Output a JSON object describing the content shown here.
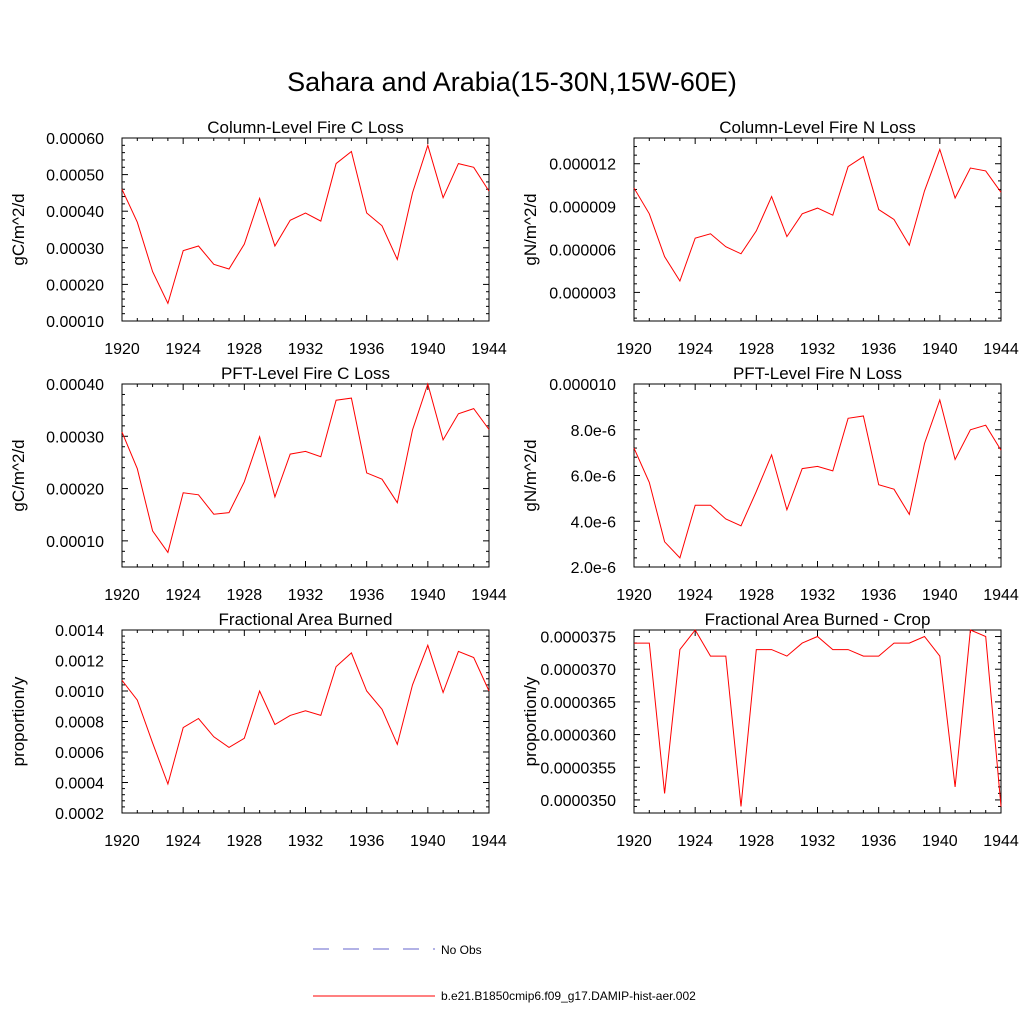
{
  "title": "Sahara and Arabia(15-30N,15W-60E)",
  "series_color": "#ff0000",
  "obs_color": "#6666cc",
  "legend": {
    "items": [
      {
        "label": "No Obs",
        "style": "dashed"
      },
      {
        "label": "b.e21.B1850cmip6.f09_g17.DAMIP-hist-aer.002",
        "style": "solid"
      }
    ]
  },
  "chart_data": [
    {
      "type": "line",
      "title": "Column-Level Fire C Loss",
      "ylabel": "gC/m^2/d",
      "xlim": [
        1920,
        1944
      ],
      "ylim": [
        0.0001,
        0.0006
      ],
      "xticks": [
        "1920",
        "1924",
        "1928",
        "1932",
        "1936",
        "1940",
        "1944"
      ],
      "yticks": [
        {
          "v": 0.0001,
          "label": "0.00010"
        },
        {
          "v": 0.0002,
          "label": "0.00020"
        },
        {
          "v": 0.0003,
          "label": "0.00030"
        },
        {
          "v": 0.0004,
          "label": "0.00040"
        },
        {
          "v": 0.0005,
          "label": "0.00050"
        },
        {
          "v": 0.0006,
          "label": "0.00060"
        }
      ],
      "x": [
        1920,
        1921,
        1922,
        1923,
        1924,
        1925,
        1926,
        1927,
        1928,
        1929,
        1930,
        1931,
        1932,
        1933,
        1934,
        1935,
        1936,
        1937,
        1938,
        1939,
        1940,
        1941,
        1942,
        1943,
        1944
      ],
      "series": [
        {
          "name": "b.e21.B1850cmip6.f09_g17.DAMIP-hist-aer.002",
          "values": [
            0.00046,
            0.00037,
            0.000235,
            0.000148,
            0.000292,
            0.000305,
            0.000255,
            0.000242,
            0.00031,
            0.000435,
            0.000305,
            0.000375,
            0.000395,
            0.000373,
            0.00053,
            0.000563,
            0.000395,
            0.00036,
            0.000268,
            0.00045,
            0.00058,
            0.000437,
            0.00053,
            0.00052,
            0.000455
          ]
        }
      ]
    },
    {
      "type": "line",
      "title": "Column-Level Fire N Loss",
      "ylabel": "gN/m^2/d",
      "xlim": [
        1920,
        1944
      ],
      "ylim": [
        1e-06,
        1.38e-05
      ],
      "xticks": [
        "1920",
        "1924",
        "1928",
        "1932",
        "1936",
        "1940",
        "1944"
      ],
      "yticks": [
        {
          "v": 3e-06,
          "label": "0.000003"
        },
        {
          "v": 6e-06,
          "label": "0.000006"
        },
        {
          "v": 9e-06,
          "label": "0.000009"
        },
        {
          "v": 1.2e-05,
          "label": "0.000012"
        }
      ],
      "x": [
        1920,
        1921,
        1922,
        1923,
        1924,
        1925,
        1926,
        1927,
        1928,
        1929,
        1930,
        1931,
        1932,
        1933,
        1934,
        1935,
        1936,
        1937,
        1938,
        1939,
        1940,
        1941,
        1942,
        1943,
        1944
      ],
      "series": [
        {
          "name": "b.e21.B1850cmip6.f09_g17.DAMIP-hist-aer.002",
          "values": [
            1.03e-05,
            8.5e-06,
            5.5e-06,
            3.8e-06,
            6.8e-06,
            7.1e-06,
            6.2e-06,
            5.7e-06,
            7.3e-06,
            9.7e-06,
            6.9e-06,
            8.5e-06,
            8.9e-06,
            8.4e-06,
            1.18e-05,
            1.25e-05,
            8.8e-06,
            8.1e-06,
            6.3e-06,
            1.01e-05,
            1.3e-05,
            9.6e-06,
            1.17e-05,
            1.15e-05,
            1e-05
          ]
        }
      ]
    },
    {
      "type": "line",
      "title": "PFT-Level Fire C Loss",
      "ylabel": "gC/m^2/d",
      "xlim": [
        1920,
        1944
      ],
      "ylim": [
        5e-05,
        0.0004
      ],
      "xticks": [
        "1920",
        "1924",
        "1928",
        "1932",
        "1936",
        "1940",
        "1944"
      ],
      "yticks": [
        {
          "v": 0.0001,
          "label": "0.00010"
        },
        {
          "v": 0.0002,
          "label": "0.00020"
        },
        {
          "v": 0.0003,
          "label": "0.00030"
        },
        {
          "v": 0.0004,
          "label": "0.00040"
        }
      ],
      "x": [
        1920,
        1921,
        1922,
        1923,
        1924,
        1925,
        1926,
        1927,
        1928,
        1929,
        1930,
        1931,
        1932,
        1933,
        1934,
        1935,
        1936,
        1937,
        1938,
        1939,
        1940,
        1941,
        1942,
        1943,
        1944
      ],
      "series": [
        {
          "name": "b.e21.B1850cmip6.f09_g17.DAMIP-hist-aer.002",
          "values": [
            0.000308,
            0.000238,
            0.000119,
            7.8e-05,
            0.000192,
            0.000188,
            0.000151,
            0.000154,
            0.000213,
            0.000299,
            0.000184,
            0.000266,
            0.000271,
            0.000261,
            0.000369,
            0.000373,
            0.00023,
            0.000218,
            0.000173,
            0.000312,
            0.0004,
            0.000293,
            0.000343,
            0.000353,
            0.000313
          ]
        }
      ]
    },
    {
      "type": "line",
      "title": "PFT-Level Fire N Loss",
      "ylabel": "gN/m^2/d",
      "xlim": [
        1920,
        1944
      ],
      "ylim": [
        2e-06,
        1e-05
      ],
      "xticks": [
        "1920",
        "1924",
        "1928",
        "1932",
        "1936",
        "1940",
        "1944"
      ],
      "yticks": [
        {
          "v": 2e-06,
          "label": "2.0e-6"
        },
        {
          "v": 4e-06,
          "label": "4.0e-6"
        },
        {
          "v": 6e-06,
          "label": "6.0e-6"
        },
        {
          "v": 8e-06,
          "label": "8.0e-6"
        },
        {
          "v": 1e-05,
          "label": "0.000010"
        }
      ],
      "x": [
        1920,
        1921,
        1922,
        1923,
        1924,
        1925,
        1926,
        1927,
        1928,
        1929,
        1930,
        1931,
        1932,
        1933,
        1934,
        1935,
        1936,
        1937,
        1938,
        1939,
        1940,
        1941,
        1942,
        1943,
        1944
      ],
      "series": [
        {
          "name": "b.e21.B1850cmip6.f09_g17.DAMIP-hist-aer.002",
          "values": [
            7.2e-06,
            5.7e-06,
            3.1e-06,
            2.4e-06,
            4.7e-06,
            4.7e-06,
            4.1e-06,
            3.8e-06,
            5.3e-06,
            6.9e-06,
            4.5e-06,
            6.3e-06,
            6.4e-06,
            6.2e-06,
            8.5e-06,
            8.6e-06,
            5.6e-06,
            5.4e-06,
            4.3e-06,
            7.4e-06,
            9.3e-06,
            6.7e-06,
            8e-06,
            8.2e-06,
            7.1e-06
          ]
        }
      ]
    },
    {
      "type": "line",
      "title": "Fractional Area Burned",
      "ylabel": "proportion/y",
      "xlim": [
        1920,
        1944
      ],
      "ylim": [
        0.0002,
        0.0014
      ],
      "xticks": [
        "1920",
        "1924",
        "1928",
        "1932",
        "1936",
        "1940",
        "1944"
      ],
      "yticks": [
        {
          "v": 0.0002,
          "label": "0.0002"
        },
        {
          "v": 0.0004,
          "label": "0.0004"
        },
        {
          "v": 0.0006,
          "label": "0.0006"
        },
        {
          "v": 0.0008,
          "label": "0.0008"
        },
        {
          "v": 0.001,
          "label": "0.0010"
        },
        {
          "v": 0.0012,
          "label": "0.0012"
        },
        {
          "v": 0.0014,
          "label": "0.0014"
        }
      ],
      "x": [
        1920,
        1921,
        1922,
        1923,
        1924,
        1925,
        1926,
        1927,
        1928,
        1929,
        1930,
        1931,
        1932,
        1933,
        1934,
        1935,
        1936,
        1937,
        1938,
        1939,
        1940,
        1941,
        1942,
        1943,
        1944
      ],
      "series": [
        {
          "name": "b.e21.B1850cmip6.f09_g17.DAMIP-hist-aer.002",
          "values": [
            0.00107,
            0.00094,
            0.00066,
            0.00039,
            0.00076,
            0.00082,
            0.0007,
            0.00063,
            0.00069,
            0.001,
            0.00078,
            0.00084,
            0.00087,
            0.00084,
            0.00116,
            0.00125,
            0.001,
            0.00088,
            0.00065,
            0.00104,
            0.0013,
            0.00099,
            0.00126,
            0.00122,
            0.001
          ]
        }
      ]
    },
    {
      "type": "line",
      "title": "Fractional Area Burned - Crop",
      "ylabel": "proportion/y",
      "xlim": [
        1920,
        1944
      ],
      "ylim": [
        3.48e-05,
        3.76e-05
      ],
      "xticks": [
        "1920",
        "1924",
        "1928",
        "1932",
        "1936",
        "1940",
        "1944"
      ],
      "yticks": [
        {
          "v": 3.5e-05,
          "label": "0.0000350"
        },
        {
          "v": 3.55e-05,
          "label": "0.0000355"
        },
        {
          "v": 3.6e-05,
          "label": "0.0000360"
        },
        {
          "v": 3.65e-05,
          "label": "0.0000365"
        },
        {
          "v": 3.7e-05,
          "label": "0.0000370"
        },
        {
          "v": 3.75e-05,
          "label": "0.0000375"
        }
      ],
      "x": [
        1920,
        1921,
        1922,
        1923,
        1924,
        1925,
        1926,
        1927,
        1928,
        1929,
        1930,
        1931,
        1932,
        1933,
        1934,
        1935,
        1936,
        1937,
        1938,
        1939,
        1940,
        1941,
        1942,
        1943,
        1944
      ],
      "series": [
        {
          "name": "b.e21.B1850cmip6.f09_g17.DAMIP-hist-aer.002",
          "values": [
            3.74e-05,
            3.74e-05,
            3.51e-05,
            3.73e-05,
            3.76e-05,
            3.72e-05,
            3.72e-05,
            3.49e-05,
            3.73e-05,
            3.73e-05,
            3.72e-05,
            3.74e-05,
            3.75e-05,
            3.73e-05,
            3.73e-05,
            3.72e-05,
            3.72e-05,
            3.74e-05,
            3.74e-05,
            3.75e-05,
            3.72e-05,
            3.52e-05,
            3.76e-05,
            3.75e-05,
            3.49e-05
          ]
        }
      ]
    }
  ]
}
